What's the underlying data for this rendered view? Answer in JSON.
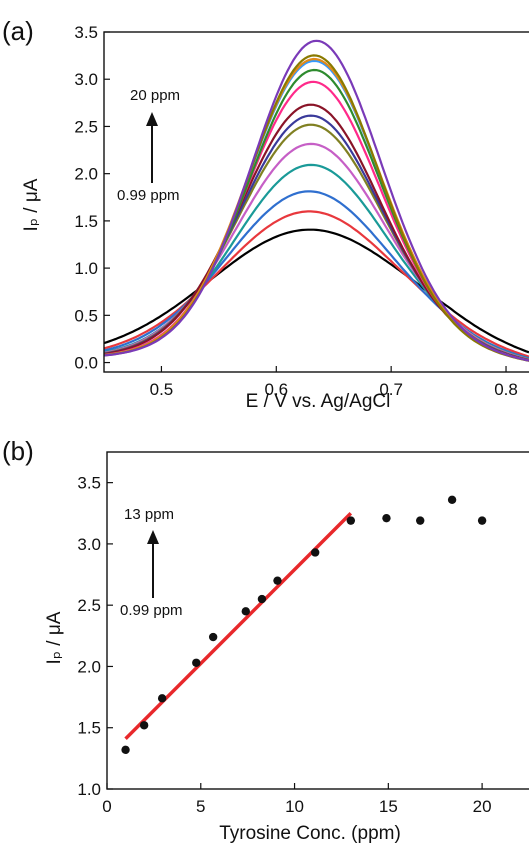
{
  "chart_data": [
    {
      "panel": "(a)",
      "type": "line",
      "xlabel": "E / V vs. Ag/AgCl",
      "ylabel": "Iₚ / μA",
      "xlim": [
        0.45,
        0.82
      ],
      "ylim": [
        -0.1,
        3.5
      ],
      "xticks": [
        0.5,
        0.6,
        0.7,
        0.8
      ],
      "yticks": [
        0.0,
        0.5,
        1.0,
        1.5,
        2.0,
        2.5,
        3.0,
        3.5
      ],
      "grid": false,
      "annotation": {
        "top": "20 ppm",
        "bottom": "0.99 ppm"
      },
      "series": [
        {
          "color": "#000000",
          "peak_x": 0.628,
          "peak_y": 1.33,
          "width": 0.085
        },
        {
          "color": "#e8383d",
          "peak_x": 0.628,
          "peak_y": 1.53,
          "width": 0.075
        },
        {
          "color": "#2f6fcf",
          "peak_x": 0.628,
          "peak_y": 1.75,
          "width": 0.07
        },
        {
          "color": "#1a9a98",
          "peak_x": 0.63,
          "peak_y": 2.04,
          "width": 0.066
        },
        {
          "color": "#c65fc6",
          "peak_x": 0.63,
          "peak_y": 2.27,
          "width": 0.064
        },
        {
          "color": "#808022",
          "peak_x": 0.63,
          "peak_y": 2.48,
          "width": 0.062
        },
        {
          "color": "#3a3a9a",
          "peak_x": 0.63,
          "peak_y": 2.58,
          "width": 0.061
        },
        {
          "color": "#8a1428",
          "peak_x": 0.63,
          "peak_y": 2.7,
          "width": 0.06
        },
        {
          "color": "#ff2a8a",
          "peak_x": 0.632,
          "peak_y": 2.95,
          "width": 0.058
        },
        {
          "color": "#2e8b2e",
          "peak_x": 0.633,
          "peak_y": 3.08,
          "width": 0.057
        },
        {
          "color": "#3399ff",
          "peak_x": 0.633,
          "peak_y": 3.18,
          "width": 0.057
        },
        {
          "color": "#e08a1a",
          "peak_x": 0.633,
          "peak_y": 3.2,
          "width": 0.057
        },
        {
          "color": "#8a7a00",
          "peak_x": 0.633,
          "peak_y": 3.24,
          "width": 0.056
        },
        {
          "color": "#7a3ab8",
          "peak_x": 0.635,
          "peak_y": 3.4,
          "width": 0.056
        }
      ]
    },
    {
      "panel": "(b)",
      "type": "scatter",
      "xlabel": "Tyrosine Conc. (ppm)",
      "ylabel": "Iₚ / μA",
      "xlim": [
        0,
        22.5
      ],
      "ylim": [
        1.0,
        3.75
      ],
      "xticks": [
        0,
        5,
        10,
        15,
        20
      ],
      "yticks": [
        1.0,
        1.5,
        2.0,
        2.5,
        3.0,
        3.5
      ],
      "grid": false,
      "annotation": {
        "top": "13 ppm",
        "bottom": "0.99 ppm"
      },
      "points": {
        "x": [
          0.99,
          1.98,
          2.94,
          4.76,
          5.66,
          7.4,
          8.26,
          9.09,
          11.1,
          13.0,
          14.9,
          16.7,
          18.4,
          20.0
        ],
        "y": [
          1.32,
          1.52,
          1.74,
          2.03,
          2.24,
          2.45,
          2.55,
          2.7,
          2.93,
          3.19,
          3.21,
          3.19,
          3.36,
          3.19
        ]
      },
      "fit": {
        "x": [
          0.99,
          13.0
        ],
        "y": [
          1.41,
          3.25
        ],
        "color": "#e8282b"
      }
    }
  ]
}
